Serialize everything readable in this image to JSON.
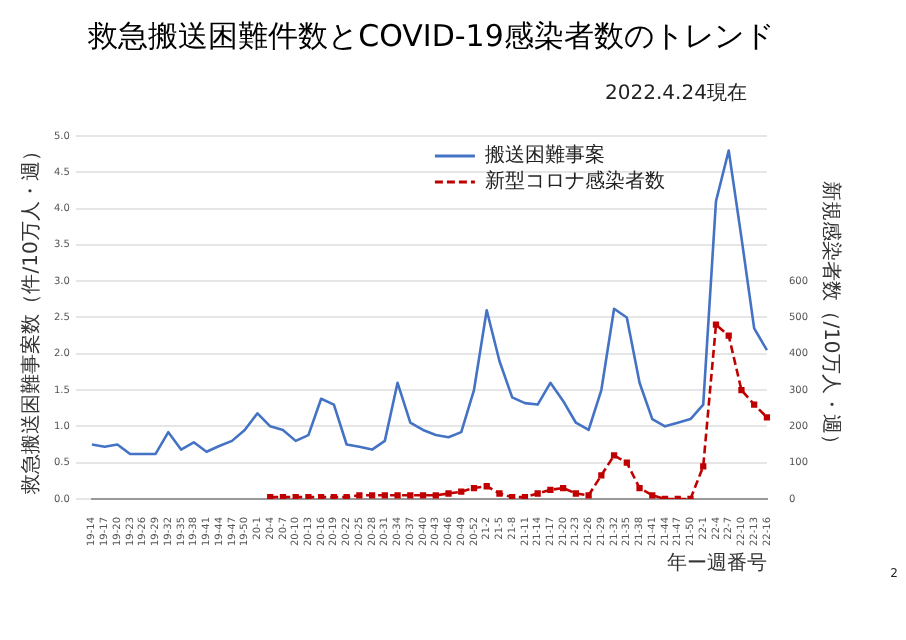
{
  "chart_data": {
    "type": "line",
    "title": "救急搬送困難件数とCOVID-19感染者数のトレンド",
    "xlabel": "年ー週番号",
    "ylabel": "救急搬送困難事案数（件/10万人・週）",
    "y2label": "新規感染者数（/10万人・週）",
    "annotations": [
      "2022.4.24現在",
      "2"
    ],
    "categories": [
      "19-14",
      "19-17",
      "19-20",
      "19-23",
      "19-26",
      "19-29",
      "19-32",
      "19-35",
      "19-38",
      "19-41",
      "19-44",
      "19-47",
      "19-50",
      "20-1",
      "20-4",
      "20-7",
      "20-10",
      "20-13",
      "20-16",
      "20-19",
      "20-22",
      "20-25",
      "20-28",
      "20-31",
      "20-34",
      "20-37",
      "20-40",
      "20-43",
      "20-46",
      "20-49",
      "20-52",
      "21-2",
      "21-5",
      "21-8",
      "21-11",
      "21-14",
      "21-17",
      "21-20",
      "21-23",
      "21-26",
      "21-29",
      "21-32",
      "21-35",
      "21-38",
      "21-41",
      "21-44",
      "21-47",
      "21-50",
      "22-1",
      "22-4",
      "22-7",
      "22-10",
      "22-13",
      "22-16"
    ],
    "series": [
      {
        "name": "搬送困難事案",
        "color": "#4472c4",
        "marker": "none",
        "line_style": "solid",
        "values": [
          0.75,
          0.72,
          0.75,
          0.62,
          0.62,
          0.62,
          0.92,
          0.68,
          0.78,
          0.65,
          0.73,
          0.8,
          0.95,
          1.18,
          1.0,
          0.95,
          0.8,
          0.88,
          1.38,
          1.3,
          0.75,
          0.72,
          0.68,
          0.8,
          1.6,
          1.05,
          0.95,
          0.88,
          0.85,
          0.92,
          1.5,
          2.6,
          1.9,
          1.4,
          1.32,
          1.3,
          1.6,
          1.35,
          1.05,
          0.95,
          1.5,
          2.62,
          2.5,
          1.6,
          1.1,
          1.0,
          1.05,
          1.1,
          1.3,
          4.1,
          4.8,
          3.6,
          2.35,
          2.05
        ]
      },
      {
        "name": "新型コロナ感染者数",
        "color": "#c00000",
        "marker": "square",
        "line_style": "dashed",
        "axis": "y2",
        "values": [
          null,
          null,
          null,
          null,
          null,
          null,
          null,
          null,
          null,
          null,
          null,
          null,
          null,
          null,
          5,
          5,
          5,
          5,
          5,
          5,
          5,
          10,
          10,
          10,
          10,
          10,
          10,
          10,
          15,
          20,
          30,
          35,
          15,
          5,
          5,
          15,
          25,
          30,
          15,
          10,
          65,
          120,
          100,
          30,
          10,
          0,
          0,
          0,
          90,
          480,
          450,
          300,
          260,
          225
        ]
      }
    ],
    "ylim": [
      0,
      5
    ],
    "yticks": [
      {
        "value": 0,
        "label": "0.0"
      },
      {
        "value": 0.5,
        "label": "0.5"
      },
      {
        "value": 1,
        "label": "1.0"
      },
      {
        "value": 1.5,
        "label": "1.5"
      },
      {
        "value": 2,
        "label": "2.0"
      },
      {
        "value": 2.5,
        "label": "2.5"
      },
      {
        "value": 3,
        "label": "3.0"
      },
      {
        "value": 3.5,
        "label": "3.5"
      },
      {
        "value": 4,
        "label": "4.0"
      },
      {
        "value": 4.5,
        "label": "4.5"
      },
      {
        "value": 5,
        "label": "5.0"
      }
    ],
    "y2lim": [
      0,
      1000
    ],
    "y2ticks": [
      0,
      100,
      200,
      300,
      400,
      500,
      600
    ],
    "grid": "y",
    "legend": "top right"
  }
}
